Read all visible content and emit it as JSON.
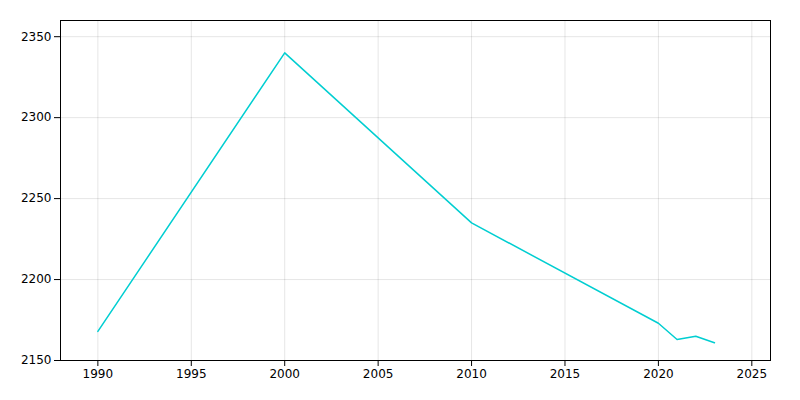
{
  "chart_data": {
    "type": "line",
    "x": [
      1990,
      2000,
      2010,
      2020,
      2021,
      2022,
      2023
    ],
    "values": [
      2168,
      2340,
      2235,
      2173,
      2163,
      2165,
      2161
    ],
    "color": "#00CED1",
    "xlim": [
      1988,
      2026
    ],
    "ylim": [
      2150,
      2360
    ],
    "xticks": [
      1990,
      1995,
      2000,
      2005,
      2010,
      2015,
      2020,
      2025
    ],
    "yticks": [
      2150,
      2200,
      2250,
      2300,
      2350
    ],
    "grid": true
  }
}
